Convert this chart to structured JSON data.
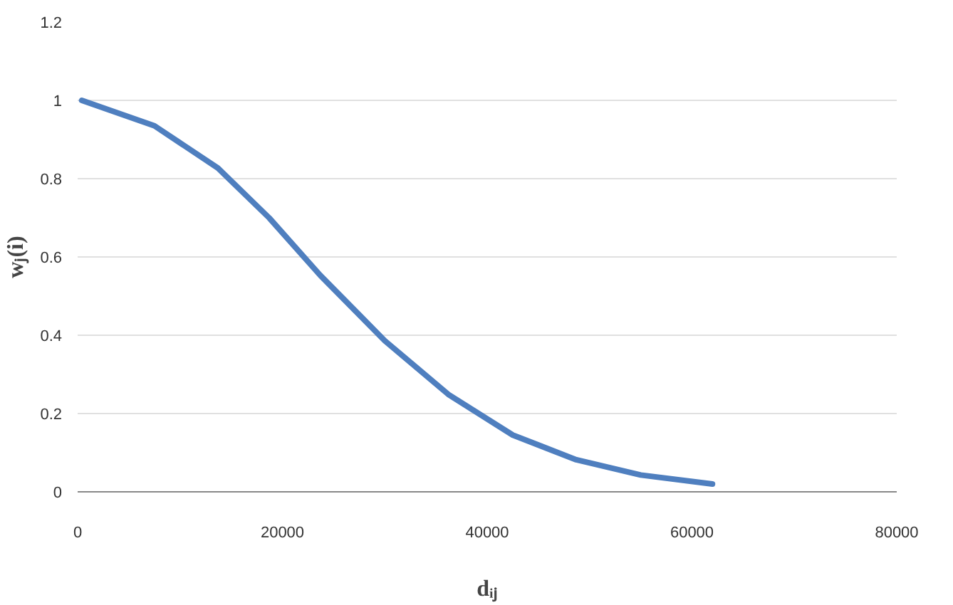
{
  "chart_data": {
    "type": "line",
    "xlabel": "dᵢⱼ",
    "ylabel": "wⱼ(i)",
    "x": [
      400,
      7500,
      13700,
      18700,
      23700,
      30000,
      36200,
      42500,
      48700,
      55000,
      62000
    ],
    "series": [
      {
        "color": "#4f7fbf",
        "values": [
          1.0,
          0.935,
          0.827,
          0.7,
          0.553,
          0.386,
          0.249,
          0.145,
          0.082,
          0.043,
          0.02
        ]
      }
    ],
    "xlim": [
      0,
      80000
    ],
    "xticks": [
      0,
      20000,
      40000,
      60000,
      80000
    ],
    "ylim": [
      0,
      1.2
    ],
    "yticks": [
      0,
      {
        "value": 0.2,
        "label": "0.2"
      },
      {
        "value": 0.4,
        "label": "0.4"
      },
      {
        "value": 0.6,
        "label": "0.6"
      },
      {
        "value": 0.8,
        "label": "0.8"
      },
      1,
      {
        "value": 1.2,
        "label": "1.2"
      }
    ],
    "grid": "y",
    "marker": "none",
    "line_style": "solid"
  }
}
